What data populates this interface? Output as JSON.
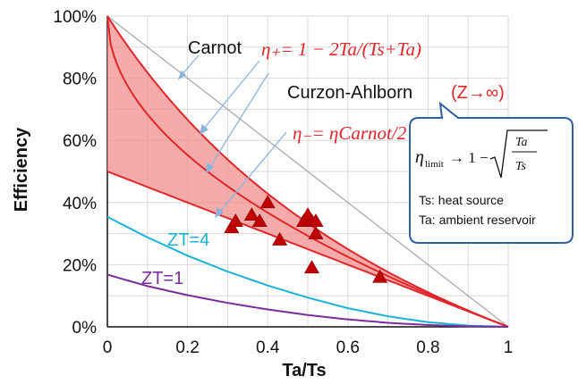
{
  "chart_data": {
    "type": "line",
    "xlabel": "Ta/Ts",
    "ylabel": "Efficiency",
    "xlim": [
      0,
      1
    ],
    "ylim": [
      0,
      100
    ],
    "x_ticks": [
      "0",
      "0.2",
      "0.4",
      "0.6",
      "0.8",
      "1"
    ],
    "y_ticks": [
      "0%",
      "20%",
      "40%",
      "60%",
      "80%",
      "100%"
    ],
    "grid": true,
    "curves": [
      {
        "id": "carnot",
        "label": "Carnot",
        "formula": "1 - x",
        "color": "#a9a9a9"
      },
      {
        "id": "curzon",
        "label": "Curzon-Ahlborn",
        "label_suffix": "(Z→∞)",
        "formula": "1 - sqrt(x)",
        "color": "#e0262b"
      },
      {
        "id": "eta_plus",
        "formula": "1 - 2x/(1+x)",
        "color": "#e0262b"
      },
      {
        "id": "eta_minus",
        "formula": "(1 - x)/2",
        "color": "#e0262b"
      },
      {
        "id": "zt4",
        "label": "ZT=4",
        "formula": "ZT figure of merit = 4",
        "color": "#1ab2d9",
        "points": [
          [
            0,
            35.4
          ],
          [
            0.1,
            28.8
          ],
          [
            0.2,
            22.9
          ],
          [
            0.3,
            17.8
          ],
          [
            0.4,
            13.3
          ],
          [
            0.5,
            9.4
          ],
          [
            0.6,
            6.0
          ],
          [
            0.7,
            3.4
          ],
          [
            0.8,
            1.5
          ],
          [
            0.9,
            0.4
          ],
          [
            1,
            0
          ]
        ]
      },
      {
        "id": "zt1",
        "label": "ZT=1",
        "formula": "ZT figure of merit = 1",
        "color": "#7a2d9c",
        "points": [
          [
            0,
            16.8
          ],
          [
            0.1,
            13.1
          ],
          [
            0.2,
            10.2
          ],
          [
            0.3,
            7.7
          ],
          [
            0.4,
            5.6
          ],
          [
            0.5,
            3.8
          ],
          [
            0.6,
            2.4
          ],
          [
            0.7,
            1.3
          ],
          [
            0.8,
            0.6
          ],
          [
            0.9,
            0.15
          ],
          [
            1,
            0
          ]
        ]
      }
    ],
    "shaded_region": {
      "between": [
        "eta_plus",
        "eta_minus"
      ],
      "color": "#f08f8c"
    },
    "markers": {
      "shape": "triangle",
      "color": "#c00000",
      "points": [
        [
          0.31,
          32
        ],
        [
          0.32,
          34
        ],
        [
          0.36,
          36
        ],
        [
          0.38,
          34
        ],
        [
          0.4,
          40
        ],
        [
          0.43,
          28
        ],
        [
          0.49,
          34
        ],
        [
          0.5,
          36
        ],
        [
          0.51,
          34
        ],
        [
          0.52,
          34
        ],
        [
          0.52,
          30
        ],
        [
          0.51,
          19
        ],
        [
          0.68,
          16
        ]
      ]
    },
    "annotations": {
      "carnot": "Carnot",
      "curzon": "Curzon-Ahlborn",
      "curzon_suffix": "(Z→∞)",
      "eta_plus_label": "η₊= 1 − 2Ta/(Ts+Ta)",
      "eta_minus_label": "η₋= ηCarnot/2",
      "zt4": "ZT=4",
      "zt1": "ZT=1"
    },
    "callout": {
      "formula_lhs": "η",
      "formula_sub": "limit",
      "formula_rhs": "→ 1 −",
      "sqrt_num": "Ta",
      "sqrt_den": "Ts",
      "legend_ts": "Ts: heat source",
      "legend_ta": "Ta: ambient reservoir"
    }
  }
}
